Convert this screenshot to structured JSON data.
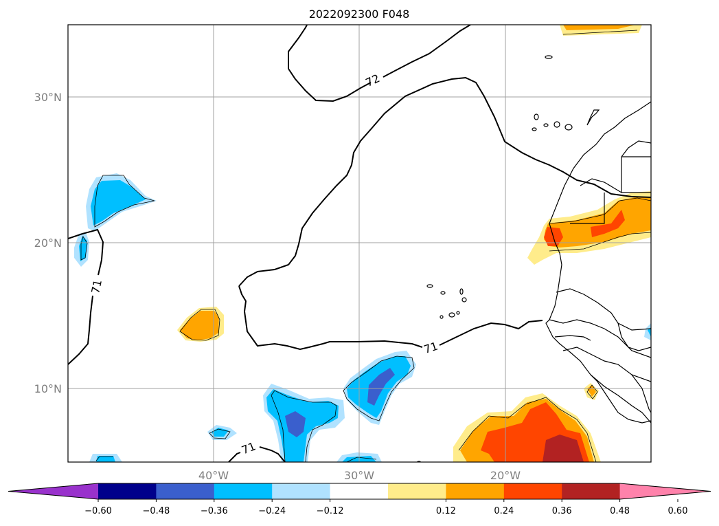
{
  "title": "2022092300 F048",
  "lat_labels": [
    "30°N",
    "20°N",
    "10°N"
  ],
  "lon_labels": [
    "40°W",
    "30°W",
    "20°W"
  ],
  "contour_labels": [
    "72",
    "71",
    "71",
    "71"
  ],
  "colorbar": {
    "ticks": [
      "−0.60",
      "−0.48",
      "−0.36",
      "−0.24",
      "−0.12",
      "0.12",
      "0.24",
      "0.36",
      "0.48",
      "0.60"
    ],
    "colors": [
      "#9932cc",
      "#00008b",
      "#3a5fcd",
      "#00bfff",
      "#b0e2ff",
      "#ffffff",
      "#ffec8b",
      "#ffa500",
      "#ff4500",
      "#b22222",
      "#ff82ab"
    ]
  }
}
